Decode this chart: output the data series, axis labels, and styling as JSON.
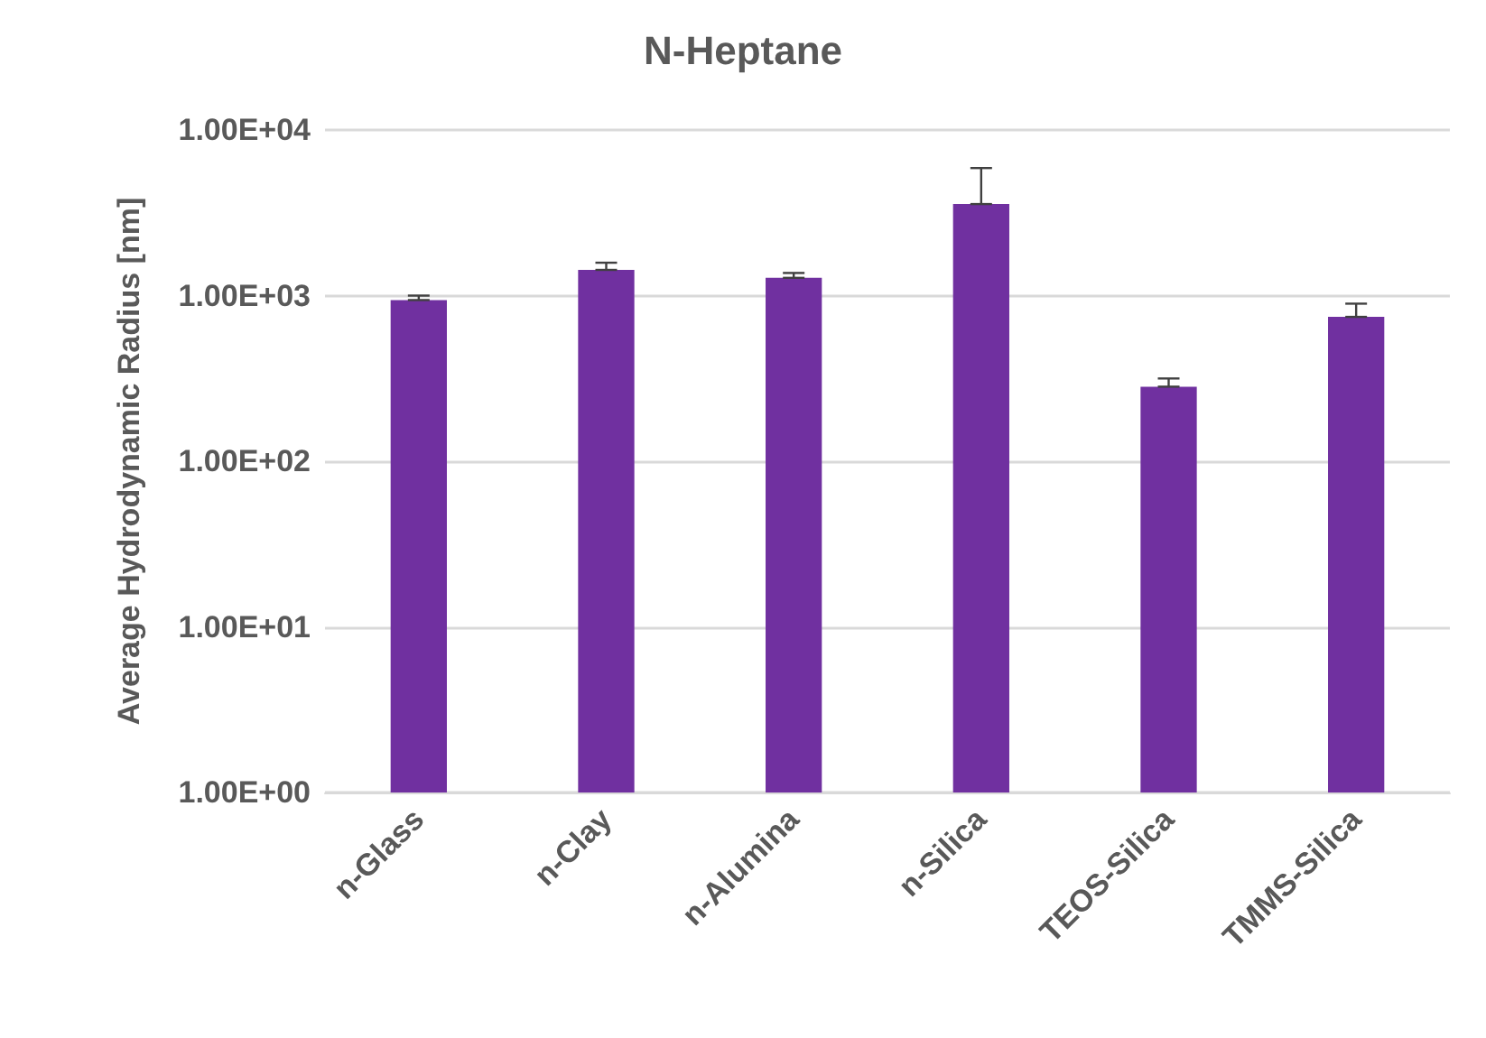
{
  "chart_data": {
    "type": "bar",
    "title": "N-Heptane",
    "ylabel": "Average Hydrodynamic Radius [nm]",
    "categories": [
      "n-Glass",
      "n-Clay",
      "n-Alumina",
      "n-Silica",
      "TEOS-Silica",
      "TMMS-Silica"
    ],
    "values": [
      940,
      1430,
      1280,
      3570,
      282,
      744
    ],
    "errors": [
      [
        940,
        1000
      ],
      [
        1430,
        1580
      ],
      [
        1280,
        1370
      ],
      [
        3570,
        5890
      ],
      [
        282,
        316
      ],
      [
        744,
        894
      ]
    ],
    "color": "#7030a0",
    "log": true,
    "ylim": [
      1,
      10000
    ],
    "yticks": [
      {
        "value": 1,
        "label": "1.00E+00"
      },
      {
        "value": 10,
        "label": "1.00E+01"
      },
      {
        "value": 100,
        "label": "1.00E+02"
      },
      {
        "value": 1000,
        "label": "1.00E+03"
      },
      {
        "value": 10000,
        "label": "1.00E+04"
      }
    ],
    "grid": "y"
  }
}
